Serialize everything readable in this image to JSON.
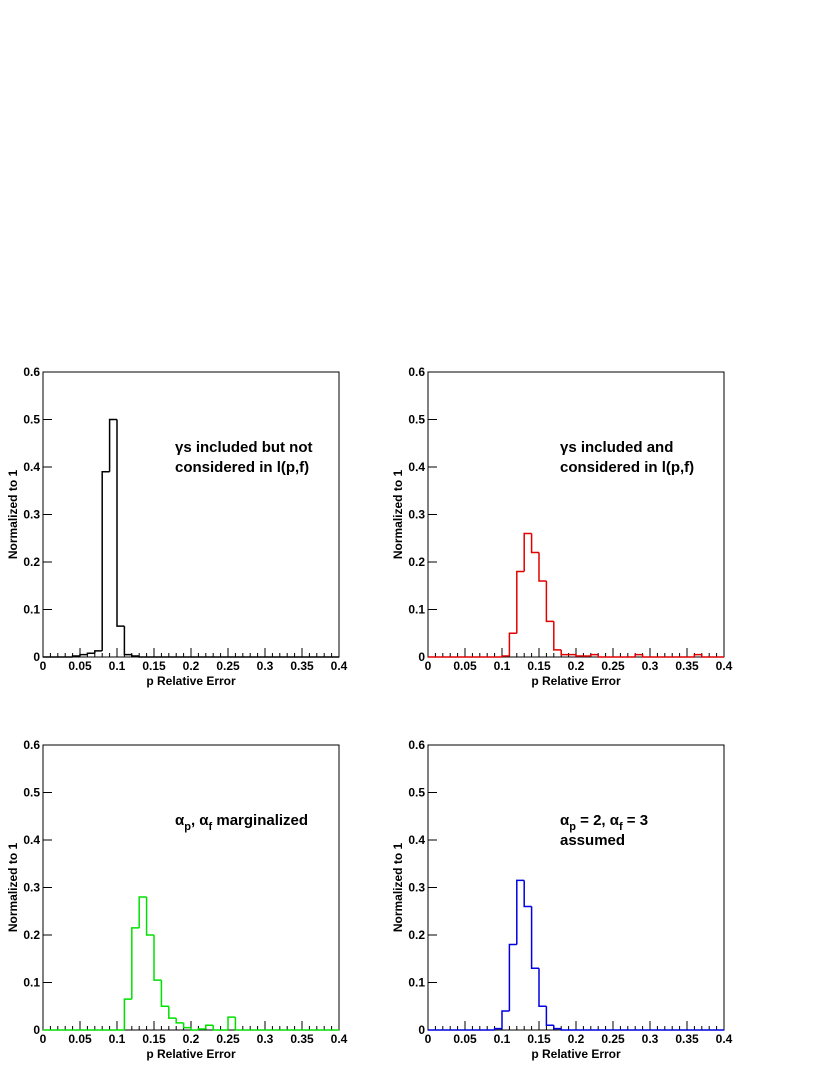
{
  "chart_data": [
    {
      "type": "histogram",
      "color": "#000000",
      "annotation": [
        [
          "γs included but not"
        ],
        [
          "considered in l(p,f)"
        ]
      ],
      "xlabel": "p Relative Error",
      "ylabel": "Normalized to 1",
      "bins": [
        0,
        0.01,
        0.02,
        0.03,
        0.04,
        0.05,
        0.06,
        0.07,
        0.08,
        0.09,
        0.1,
        0.11,
        0.12,
        0.13,
        0.14,
        0.15,
        0.16,
        0.17,
        0.18,
        0.19,
        0.2,
        0.21,
        0.22,
        0.23,
        0.24,
        0.25,
        0.26,
        0.27,
        0.28,
        0.29,
        0.3,
        0.31,
        0.32,
        0.33,
        0.34,
        0.35,
        0.36,
        0.37,
        0.38,
        0.39,
        0.4
      ],
      "counts": [
        0,
        0,
        0,
        0,
        0.002,
        0.005,
        0.008,
        0.013,
        0.39,
        0.5,
        0.065,
        0.005,
        0.002,
        0,
        0,
        0,
        0,
        0,
        0,
        0,
        0,
        0,
        0,
        0,
        0,
        0,
        0,
        0,
        0,
        0,
        0,
        0,
        0,
        0,
        0,
        0,
        0,
        0,
        0,
        0
      ],
      "xlim": [
        0,
        0.4
      ],
      "ylim": [
        0,
        0.6
      ],
      "xticks": [
        0,
        0.05,
        0.1,
        0.15,
        0.2,
        0.25,
        0.3,
        0.35,
        0.4
      ],
      "yticks": [
        0,
        0.1,
        0.2,
        0.3,
        0.4,
        0.5,
        0.6
      ]
    },
    {
      "type": "histogram",
      "color": "#e00000",
      "annotation": [
        [
          "γs included and"
        ],
        [
          "considered in l(p,f)"
        ]
      ],
      "xlabel": "p Relative Error",
      "ylabel": "Normalized to 1",
      "bins": [
        0,
        0.01,
        0.02,
        0.03,
        0.04,
        0.05,
        0.06,
        0.07,
        0.08,
        0.09,
        0.1,
        0.11,
        0.12,
        0.13,
        0.14,
        0.15,
        0.16,
        0.17,
        0.18,
        0.19,
        0.2,
        0.21,
        0.22,
        0.23,
        0.24,
        0.25,
        0.26,
        0.27,
        0.28,
        0.29,
        0.3,
        0.31,
        0.32,
        0.33,
        0.34,
        0.35,
        0.36,
        0.37,
        0.38,
        0.39,
        0.4
      ],
      "counts": [
        0,
        0,
        0,
        0,
        0,
        0,
        0,
        0,
        0,
        0,
        0.002,
        0.05,
        0.18,
        0.26,
        0.22,
        0.16,
        0.075,
        0.015,
        0.005,
        0.005,
        0.002,
        0.002,
        0.005,
        0,
        0,
        0,
        0,
        0,
        0.005,
        0,
        0,
        0,
        0,
        0,
        0,
        0,
        0.005,
        0,
        0,
        0
      ],
      "xlim": [
        0,
        0.4
      ],
      "ylim": [
        0,
        0.6
      ],
      "xticks": [
        0,
        0.05,
        0.1,
        0.15,
        0.2,
        0.25,
        0.3,
        0.35,
        0.4
      ],
      "yticks": [
        0,
        0.1,
        0.2,
        0.3,
        0.4,
        0.5,
        0.6
      ]
    },
    {
      "type": "histogram",
      "color": "#00e000",
      "annotation": [
        [
          "α",
          "p",
          ", α",
          "f",
          " marginalized"
        ]
      ],
      "xlabel": "p Relative Error",
      "ylabel": "Normalized to 1",
      "bins": [
        0,
        0.01,
        0.02,
        0.03,
        0.04,
        0.05,
        0.06,
        0.07,
        0.08,
        0.09,
        0.1,
        0.11,
        0.12,
        0.13,
        0.14,
        0.15,
        0.16,
        0.17,
        0.18,
        0.19,
        0.2,
        0.21,
        0.22,
        0.23,
        0.24,
        0.25,
        0.26,
        0.27,
        0.28,
        0.29,
        0.3,
        0.31,
        0.32,
        0.33,
        0.34,
        0.35,
        0.36,
        0.37,
        0.38,
        0.39,
        0.4
      ],
      "counts": [
        0,
        0,
        0,
        0,
        0,
        0,
        0,
        0,
        0,
        0,
        0,
        0.065,
        0.215,
        0.28,
        0.2,
        0.105,
        0.05,
        0.025,
        0.015,
        0.005,
        0,
        0.002,
        0.01,
        0,
        0,
        0.027,
        0,
        0,
        0,
        0,
        0,
        0,
        0,
        0,
        0,
        0,
        0,
        0,
        0,
        0
      ],
      "xlim": [
        0,
        0.4
      ],
      "ylim": [
        0,
        0.6
      ],
      "xticks": [
        0,
        0.05,
        0.1,
        0.15,
        0.2,
        0.25,
        0.3,
        0.35,
        0.4
      ],
      "yticks": [
        0,
        0.1,
        0.2,
        0.3,
        0.4,
        0.5,
        0.6
      ]
    },
    {
      "type": "histogram",
      "color": "#0000e0",
      "annotation": [
        [
          "α",
          "p",
          " = 2, α",
          "f",
          " = 3"
        ],
        [
          "assumed"
        ]
      ],
      "xlabel": "p Relative Error",
      "ylabel": "Normalized to 1",
      "bins": [
        0,
        0.01,
        0.02,
        0.03,
        0.04,
        0.05,
        0.06,
        0.07,
        0.08,
        0.09,
        0.1,
        0.11,
        0.12,
        0.13,
        0.14,
        0.15,
        0.16,
        0.17,
        0.18,
        0.19,
        0.2,
        0.21,
        0.22,
        0.23,
        0.24,
        0.25,
        0.26,
        0.27,
        0.28,
        0.29,
        0.3,
        0.31,
        0.32,
        0.33,
        0.34,
        0.35,
        0.36,
        0.37,
        0.38,
        0.39,
        0.4
      ],
      "counts": [
        0,
        0,
        0,
        0,
        0,
        0,
        0,
        0,
        0,
        0.003,
        0.04,
        0.18,
        0.315,
        0.26,
        0.13,
        0.05,
        0.01,
        0.003,
        0,
        0,
        0,
        0,
        0,
        0,
        0,
        0,
        0,
        0,
        0,
        0,
        0,
        0,
        0,
        0,
        0,
        0,
        0,
        0,
        0,
        0
      ],
      "xlim": [
        0,
        0.4
      ],
      "ylim": [
        0,
        0.6
      ],
      "xticks": [
        0,
        0.05,
        0.1,
        0.15,
        0.2,
        0.25,
        0.3,
        0.35,
        0.4
      ],
      "yticks": [
        0,
        0.1,
        0.2,
        0.3,
        0.4,
        0.5,
        0.6
      ]
    }
  ]
}
